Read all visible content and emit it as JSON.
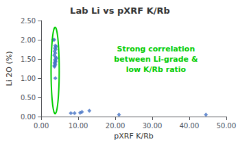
{
  "chart_data": {
    "type": "scatter",
    "title": "Lab Li vs pXRF K/Rb",
    "x_label": "pXRF K/Rb",
    "y_label": "Li 2O (%)",
    "xlim": [
      0,
      50
    ],
    "ylim": [
      0,
      2.5
    ],
    "xticks": [
      {
        "value": 0,
        "label": "0.00"
      },
      {
        "value": 10,
        "label": "10.00"
      },
      {
        "value": 20,
        "label": "20.00"
      },
      {
        "value": 30,
        "label": "30.00"
      },
      {
        "value": 40,
        "label": "40.00"
      },
      {
        "value": 50,
        "label": "50.00"
      }
    ],
    "yticks": [
      {
        "value": 0,
        "label": "0.00"
      },
      {
        "value": 0.5,
        "label": "0.50"
      },
      {
        "value": 1,
        "label": "1.00"
      },
      {
        "value": 1.5,
        "label": "1.50"
      },
      {
        "value": 2,
        "label": "2.00"
      },
      {
        "value": 2.5,
        "label": "2.50"
      }
    ],
    "grid": false,
    "marker": "diamond",
    "color": "#4472C4",
    "x": [
      3.2,
      3.5,
      3.8,
      4.0,
      3.7,
      3.9,
      3.6,
      3.8,
      3.5,
      3.9,
      4.1,
      3.7,
      3.8,
      3.9,
      3.6,
      3.7,
      3.8,
      3.5,
      3.6,
      3.8,
      8.0,
      9.0,
      10.5,
      11.0,
      13.0,
      21.0,
      44.5
    ],
    "values": [
      2.0,
      2.0,
      1.85,
      1.82,
      1.78,
      1.75,
      1.7,
      1.65,
      1.6,
      1.55,
      1.52,
      1.48,
      1.45,
      1.43,
      1.4,
      1.38,
      1.35,
      1.32,
      1.3,
      1.0,
      0.09,
      0.09,
      0.1,
      0.12,
      0.15,
      0.05,
      0.05
    ],
    "ellipse": {
      "x": 3.75,
      "y": 1.2,
      "width": 2.2,
      "height": 2.25,
      "color": "#00CC00"
    },
    "annotations": [
      {
        "text": "Strong correlation\nbetween Li-grade &\nlow K/Rb ratio",
        "color": "#00CC00"
      }
    ]
  }
}
